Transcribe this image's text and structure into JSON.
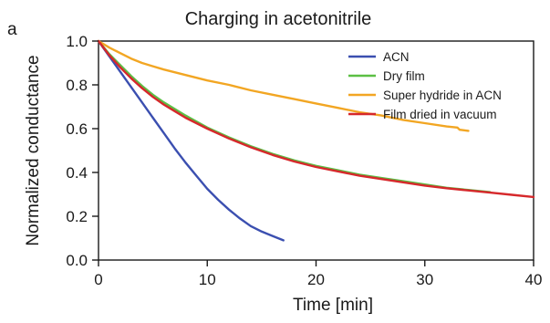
{
  "panel_label": "a",
  "chart_data": {
    "type": "line",
    "title": "Charging in acetonitrile",
    "xlabel": "Time [min]",
    "ylabel": "Normalized conductance",
    "xlim": [
      0,
      40
    ],
    "ylim": [
      0,
      1.0
    ],
    "xticks": [
      "0",
      "10",
      "20",
      "30",
      "40"
    ],
    "yticks": [
      "0.0",
      "0.2",
      "0.4",
      "0.6",
      "0.8",
      "1.0"
    ],
    "grid": false,
    "legend_position": "top-right",
    "series": [
      {
        "name": "ACN",
        "color": "#3b4fb0",
        "x": [
          0,
          1,
          2,
          3,
          4,
          5,
          6,
          7,
          8,
          9,
          10,
          11,
          12,
          13,
          14,
          15,
          16,
          17
        ],
        "y": [
          1.0,
          0.93,
          0.86,
          0.79,
          0.72,
          0.65,
          0.58,
          0.51,
          0.445,
          0.385,
          0.325,
          0.275,
          0.23,
          0.19,
          0.155,
          0.13,
          0.11,
          0.09
        ]
      },
      {
        "name": "Dry film",
        "color": "#5cbf45",
        "x": [
          0,
          1,
          2,
          3,
          4,
          5,
          6,
          7,
          8,
          10,
          12,
          14,
          16,
          18,
          20,
          22,
          24,
          26,
          28,
          30,
          32,
          34,
          36
        ],
        "y": [
          1.0,
          0.94,
          0.89,
          0.84,
          0.795,
          0.755,
          0.72,
          0.69,
          0.66,
          0.605,
          0.56,
          0.52,
          0.485,
          0.455,
          0.43,
          0.41,
          0.39,
          0.375,
          0.36,
          0.345,
          0.33,
          0.32,
          0.31
        ]
      },
      {
        "name": "Super hydride in ACN",
        "color": "#f2a623",
        "x": [
          0,
          1,
          2,
          3,
          4,
          5,
          6,
          8,
          10,
          12,
          14,
          16,
          18,
          20,
          22,
          24,
          26,
          28,
          30,
          32,
          33,
          33.2,
          34
        ],
        "y": [
          1.0,
          0.97,
          0.945,
          0.92,
          0.9,
          0.885,
          0.87,
          0.845,
          0.82,
          0.8,
          0.775,
          0.755,
          0.735,
          0.715,
          0.695,
          0.675,
          0.66,
          0.64,
          0.625,
          0.61,
          0.605,
          0.595,
          0.59
        ]
      },
      {
        "name": "Film dried in vacuum",
        "color": "#d6282b",
        "x": [
          0,
          1,
          2,
          3,
          4,
          5,
          6,
          7,
          8,
          10,
          12,
          14,
          16,
          18,
          20,
          22,
          24,
          26,
          28,
          30,
          32,
          34,
          36,
          38,
          40
        ],
        "y": [
          1.0,
          0.935,
          0.88,
          0.83,
          0.785,
          0.745,
          0.71,
          0.68,
          0.65,
          0.6,
          0.555,
          0.515,
          0.48,
          0.45,
          0.425,
          0.405,
          0.385,
          0.37,
          0.355,
          0.34,
          0.328,
          0.318,
          0.308,
          0.298,
          0.288
        ]
      }
    ]
  }
}
